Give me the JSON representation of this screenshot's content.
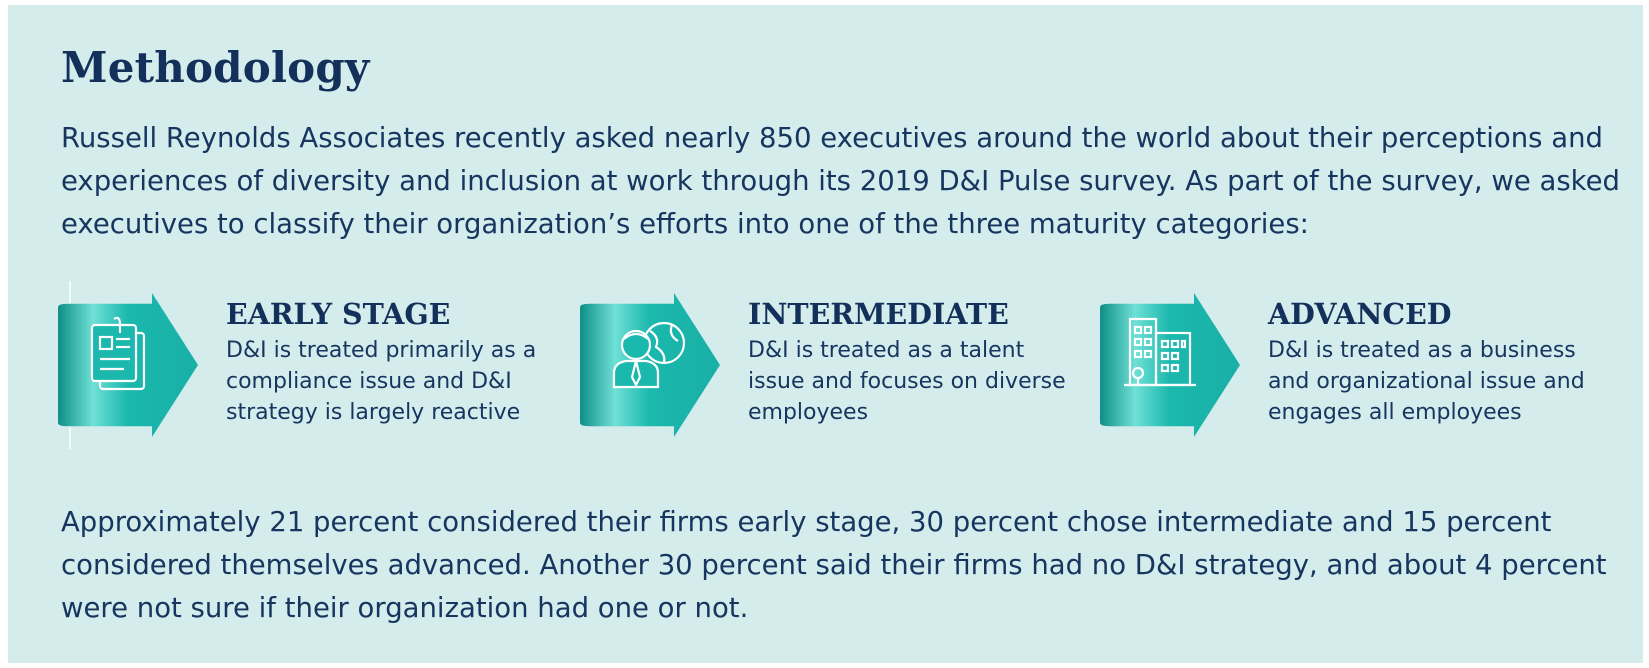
{
  "title": "Methodology",
  "intro": "Russell Reynolds Associates recently asked nearly 850 executives around the world about their perceptions and experiences of diversity and inclusion at work through its 2019 D&I Pulse survey. As part of the survey, we asked executives to classify their organization’s efforts into one of the three maturity categories:",
  "stages": [
    {
      "title": "EARLY STAGE",
      "description": "D&I is treated primarily as a compliance issue and D&I strategy is largely reactive",
      "icon": "documents-icon"
    },
    {
      "title": "INTERMEDIATE",
      "description": "D&I is treated as a talent issue and focuses on diverse employees",
      "icon": "person-globe-icon"
    },
    {
      "title": "ADVANCED",
      "description": "D&I is treated as a business and organizational issue and engages all employees",
      "icon": "buildings-icon"
    }
  ],
  "outro": "Approximately 21 percent considered their firms early stage, 30 percent chose intermediate and 15 percent considered themselves advanced. Another 30 percent said their firms had no D&I strategy, and about 4 percent were not sure if their organization had one or not.",
  "colors": {
    "background": "#d4ecec",
    "heading": "#13305a",
    "text": "#16355f",
    "arrow": "#1bb8ad",
    "arrow_dark": "#0e8f88"
  }
}
